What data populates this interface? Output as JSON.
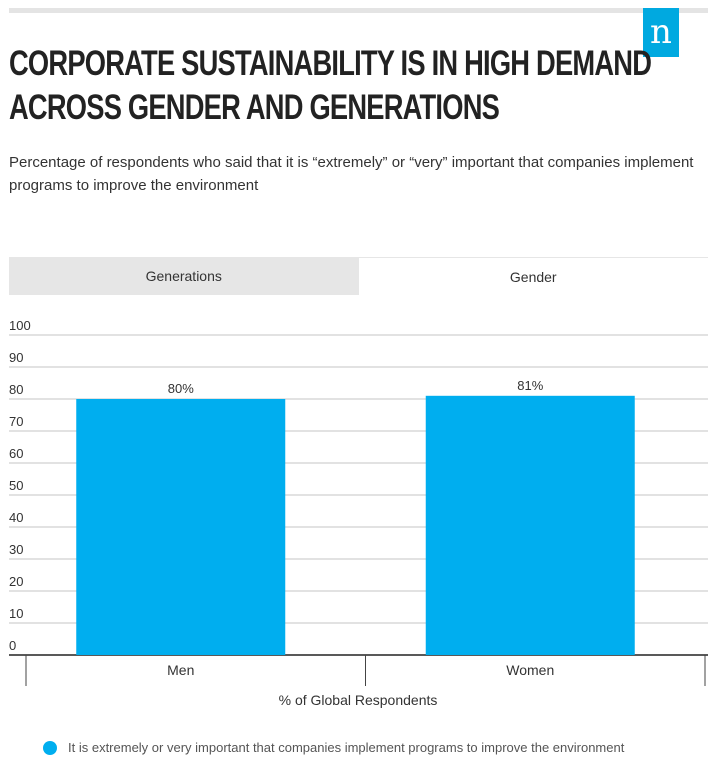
{
  "header": {
    "title": "CORPORATE SUSTAINABILITY IS IN HIGH DEMAND ACROSS GENDER AND GENERATIONS",
    "subtitle": "Percentage of respondents who said that it is “extremely” or “very” important that companies implement programs to improve the environment",
    "logo_letter": "n"
  },
  "tabs": [
    {
      "label": "Generations",
      "active": false
    },
    {
      "label": "Gender",
      "active": true
    }
  ],
  "chart_data": {
    "type": "bar",
    "categories": [
      "Men",
      "Women"
    ],
    "series": [
      {
        "name": "It is extremely or very important that companies implement programs to improve the environment",
        "values": [
          80,
          81
        ],
        "labels": [
          "80%",
          "81%"
        ],
        "color": "#00aeef"
      }
    ],
    "yticks": [
      0,
      10,
      20,
      30,
      40,
      50,
      60,
      70,
      80,
      90,
      100
    ],
    "ylim": [
      0,
      100
    ],
    "xlabel": "% of Global Respondents",
    "ylabel": "",
    "grid": true,
    "legend": "bottom"
  },
  "legend": {
    "label": "It is extremely or very important that companies implement programs to improve the environment",
    "color": "#00aeef"
  }
}
